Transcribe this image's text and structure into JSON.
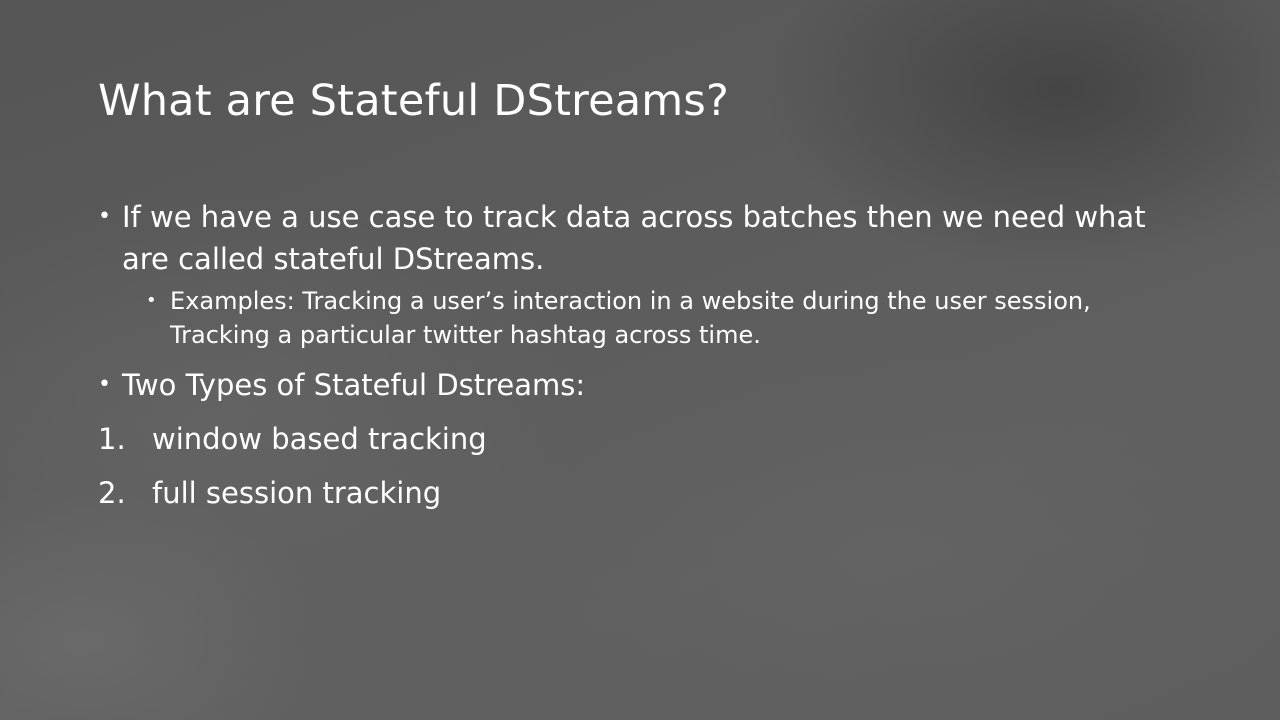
{
  "slide": {
    "title": "What are Stateful DStreams?",
    "bullets": [
      {
        "text": "If we have a use case to track data across batches then we need what are called stateful DStreams.",
        "sub": [
          {
            "text": "Examples: Tracking a user’s interaction in a website during the user session, Tracking a particular twitter hashtag across time."
          }
        ]
      },
      {
        "text": "Two Types of Stateful Dstreams:"
      }
    ],
    "numbered": [
      {
        "num": "1.",
        "text": "window based tracking"
      },
      {
        "num": "2.",
        "text": "full session tracking"
      }
    ],
    "bullet_symbol": "•"
  },
  "colors": {
    "background": "#5a5a5a",
    "text": "#ffffff"
  }
}
